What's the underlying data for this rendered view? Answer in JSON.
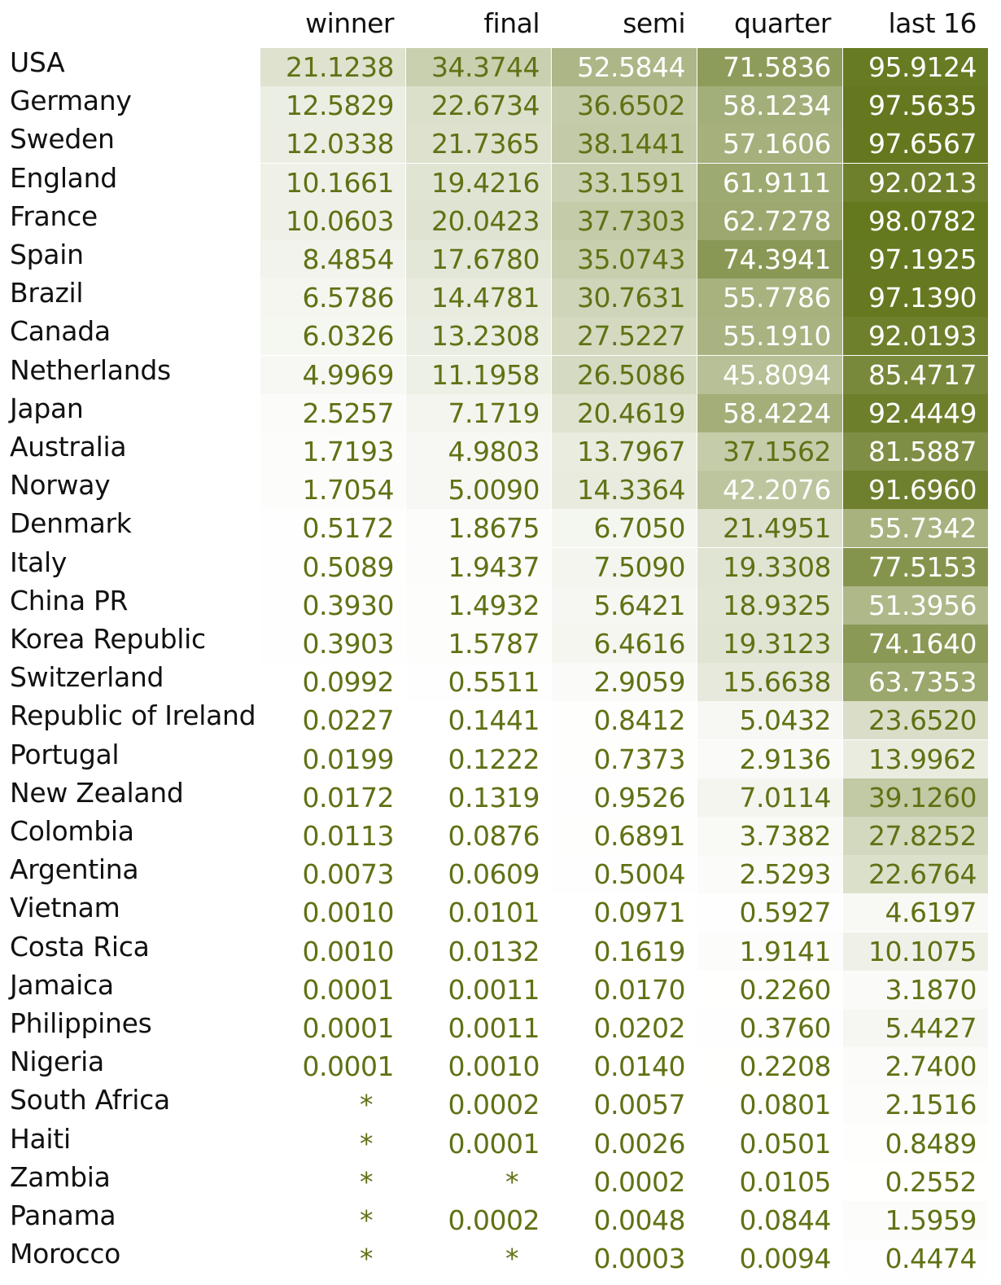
{
  "chart_data": {
    "type": "heatmap",
    "columns": [
      "winner",
      "final",
      "semi",
      "quarter",
      "last 16"
    ],
    "max_value": 100,
    "colors": {
      "low": "#ffffff",
      "high": "#61751a",
      "text_dark": "#5f7214",
      "text_light": "#ffffff",
      "label": "#111111"
    },
    "rows": [
      {
        "team": "USA",
        "values": [
          "21.1238",
          "34.3744",
          "52.5844",
          "71.5836",
          "95.9124"
        ]
      },
      {
        "team": "Germany",
        "values": [
          "12.5829",
          "22.6734",
          "36.6502",
          "58.1234",
          "97.5635"
        ]
      },
      {
        "team": "Sweden",
        "values": [
          "12.0338",
          "21.7365",
          "38.1441",
          "57.1606",
          "97.6567"
        ]
      },
      {
        "team": "England",
        "values": [
          "10.1661",
          "19.4216",
          "33.1591",
          "61.9111",
          "92.0213"
        ]
      },
      {
        "team": "France",
        "values": [
          "10.0603",
          "20.0423",
          "37.7303",
          "62.7278",
          "98.0782"
        ]
      },
      {
        "team": "Spain",
        "values": [
          "8.4854",
          "17.6780",
          "35.0743",
          "74.3941",
          "97.1925"
        ]
      },
      {
        "team": "Brazil",
        "values": [
          "6.5786",
          "14.4781",
          "30.7631",
          "55.7786",
          "97.1390"
        ]
      },
      {
        "team": "Canada",
        "values": [
          "6.0326",
          "13.2308",
          "27.5227",
          "55.1910",
          "92.0193"
        ]
      },
      {
        "team": "Netherlands",
        "values": [
          "4.9969",
          "11.1958",
          "26.5086",
          "45.8094",
          "85.4717"
        ]
      },
      {
        "team": "Japan",
        "values": [
          "2.5257",
          "7.1719",
          "20.4619",
          "58.4224",
          "92.4449"
        ]
      },
      {
        "team": "Australia",
        "values": [
          "1.7193",
          "4.9803",
          "13.7967",
          "37.1562",
          "81.5887"
        ]
      },
      {
        "team": "Norway",
        "values": [
          "1.7054",
          "5.0090",
          "14.3364",
          "42.2076",
          "91.6960"
        ]
      },
      {
        "team": "Denmark",
        "values": [
          "0.5172",
          "1.8675",
          "6.7050",
          "21.4951",
          "55.7342"
        ]
      },
      {
        "team": "Italy",
        "values": [
          "0.5089",
          "1.9437",
          "7.5090",
          "19.3308",
          "77.5153"
        ]
      },
      {
        "team": "China PR",
        "values": [
          "0.3930",
          "1.4932",
          "5.6421",
          "18.9325",
          "51.3956"
        ]
      },
      {
        "team": "Korea Republic",
        "values": [
          "0.3903",
          "1.5787",
          "6.4616",
          "19.3123",
          "74.1640"
        ]
      },
      {
        "team": "Switzerland",
        "values": [
          "0.0992",
          "0.5511",
          "2.9059",
          "15.6638",
          "63.7353"
        ]
      },
      {
        "team": "Republic of Ireland",
        "values": [
          "0.0227",
          "0.1441",
          "0.8412",
          "5.0432",
          "23.6520"
        ]
      },
      {
        "team": "Portugal",
        "values": [
          "0.0199",
          "0.1222",
          "0.7373",
          "2.9136",
          "13.9962"
        ]
      },
      {
        "team": "New Zealand",
        "values": [
          "0.0172",
          "0.1319",
          "0.9526",
          "7.0114",
          "39.1260"
        ]
      },
      {
        "team": "Colombia",
        "values": [
          "0.0113",
          "0.0876",
          "0.6891",
          "3.7382",
          "27.8252"
        ]
      },
      {
        "team": "Argentina",
        "values": [
          "0.0073",
          "0.0609",
          "0.5004",
          "2.5293",
          "22.6764"
        ]
      },
      {
        "team": "Vietnam",
        "values": [
          "0.0010",
          "0.0101",
          "0.0971",
          "0.5927",
          "4.6197"
        ]
      },
      {
        "team": "Costa Rica",
        "values": [
          "0.0010",
          "0.0132",
          "0.1619",
          "1.9141",
          "10.1075"
        ]
      },
      {
        "team": "Jamaica",
        "values": [
          "0.0001",
          "0.0011",
          "0.0170",
          "0.2260",
          "3.1870"
        ]
      },
      {
        "team": "Philippines",
        "values": [
          "0.0001",
          "0.0011",
          "0.0202",
          "0.3760",
          "5.4427"
        ]
      },
      {
        "team": "Nigeria",
        "values": [
          "0.0001",
          "0.0010",
          "0.0140",
          "0.2208",
          "2.7400"
        ]
      },
      {
        "team": "South Africa",
        "values": [
          "*",
          "0.0002",
          "0.0057",
          "0.0801",
          "2.1516"
        ]
      },
      {
        "team": "Haiti",
        "values": [
          "*",
          "0.0001",
          "0.0026",
          "0.0501",
          "0.8489"
        ]
      },
      {
        "team": "Zambia",
        "values": [
          "*",
          "*",
          "0.0002",
          "0.0105",
          "0.2552"
        ]
      },
      {
        "team": "Panama",
        "values": [
          "*",
          "0.0002",
          "0.0048",
          "0.0844",
          "1.5959"
        ]
      },
      {
        "team": "Morocco",
        "values": [
          "*",
          "*",
          "0.0003",
          "0.0094",
          "0.4474"
        ]
      }
    ]
  }
}
